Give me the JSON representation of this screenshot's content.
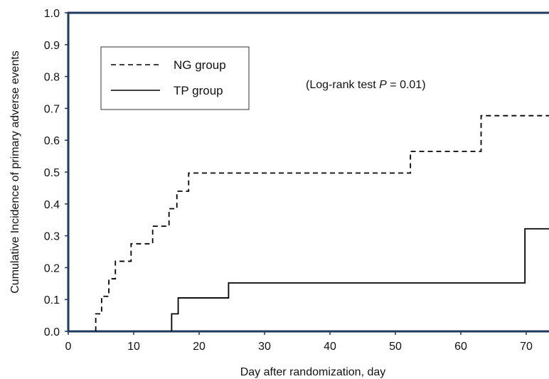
{
  "chart_data": {
    "type": "line",
    "title": "",
    "xlabel": "Day after randomization, day",
    "ylabel": "Cumulative Incidence of primary adverse events",
    "xlim": [
      0,
      75
    ],
    "ylim": [
      0,
      1.0
    ],
    "x_ticks": [
      "0",
      "10",
      "20",
      "30",
      "40",
      "50",
      "60",
      "70"
    ],
    "y_ticks": [
      "0.0",
      "0.1",
      "0.2",
      "0.3",
      "0.4",
      "0.5",
      "0.6",
      "0.7",
      "0.8",
      "0.9",
      "1.0"
    ],
    "grid": false,
    "legend_position": "top-left",
    "step": true,
    "series": [
      {
        "name": "NG group",
        "style": "dashed",
        "color": "#000000",
        "x": [
          4.2,
          5.1,
          6.2,
          7.2,
          8.3,
          9.6,
          12.9,
          15.4,
          16.6,
          18.4,
          52.3,
          63.1,
          75
        ],
        "y": [
          0.055,
          0.11,
          0.165,
          0.22,
          0.22,
          0.275,
          0.33,
          0.385,
          0.44,
          0.497,
          0.565,
          0.677,
          0.677
        ]
      },
      {
        "name": "TP group",
        "style": "solid",
        "color": "#000000",
        "x": [
          15.8,
          16.8,
          24.5,
          69.8,
          75
        ],
        "y": [
          0.055,
          0.105,
          0.152,
          0.322,
          0.322
        ]
      }
    ],
    "annotation": "(Log-rank test  P = 0.01)"
  },
  "annotation_parts": {
    "prefix": "(Log-rank test  ",
    "italic": "P",
    "suffix": " = 0.01)"
  }
}
